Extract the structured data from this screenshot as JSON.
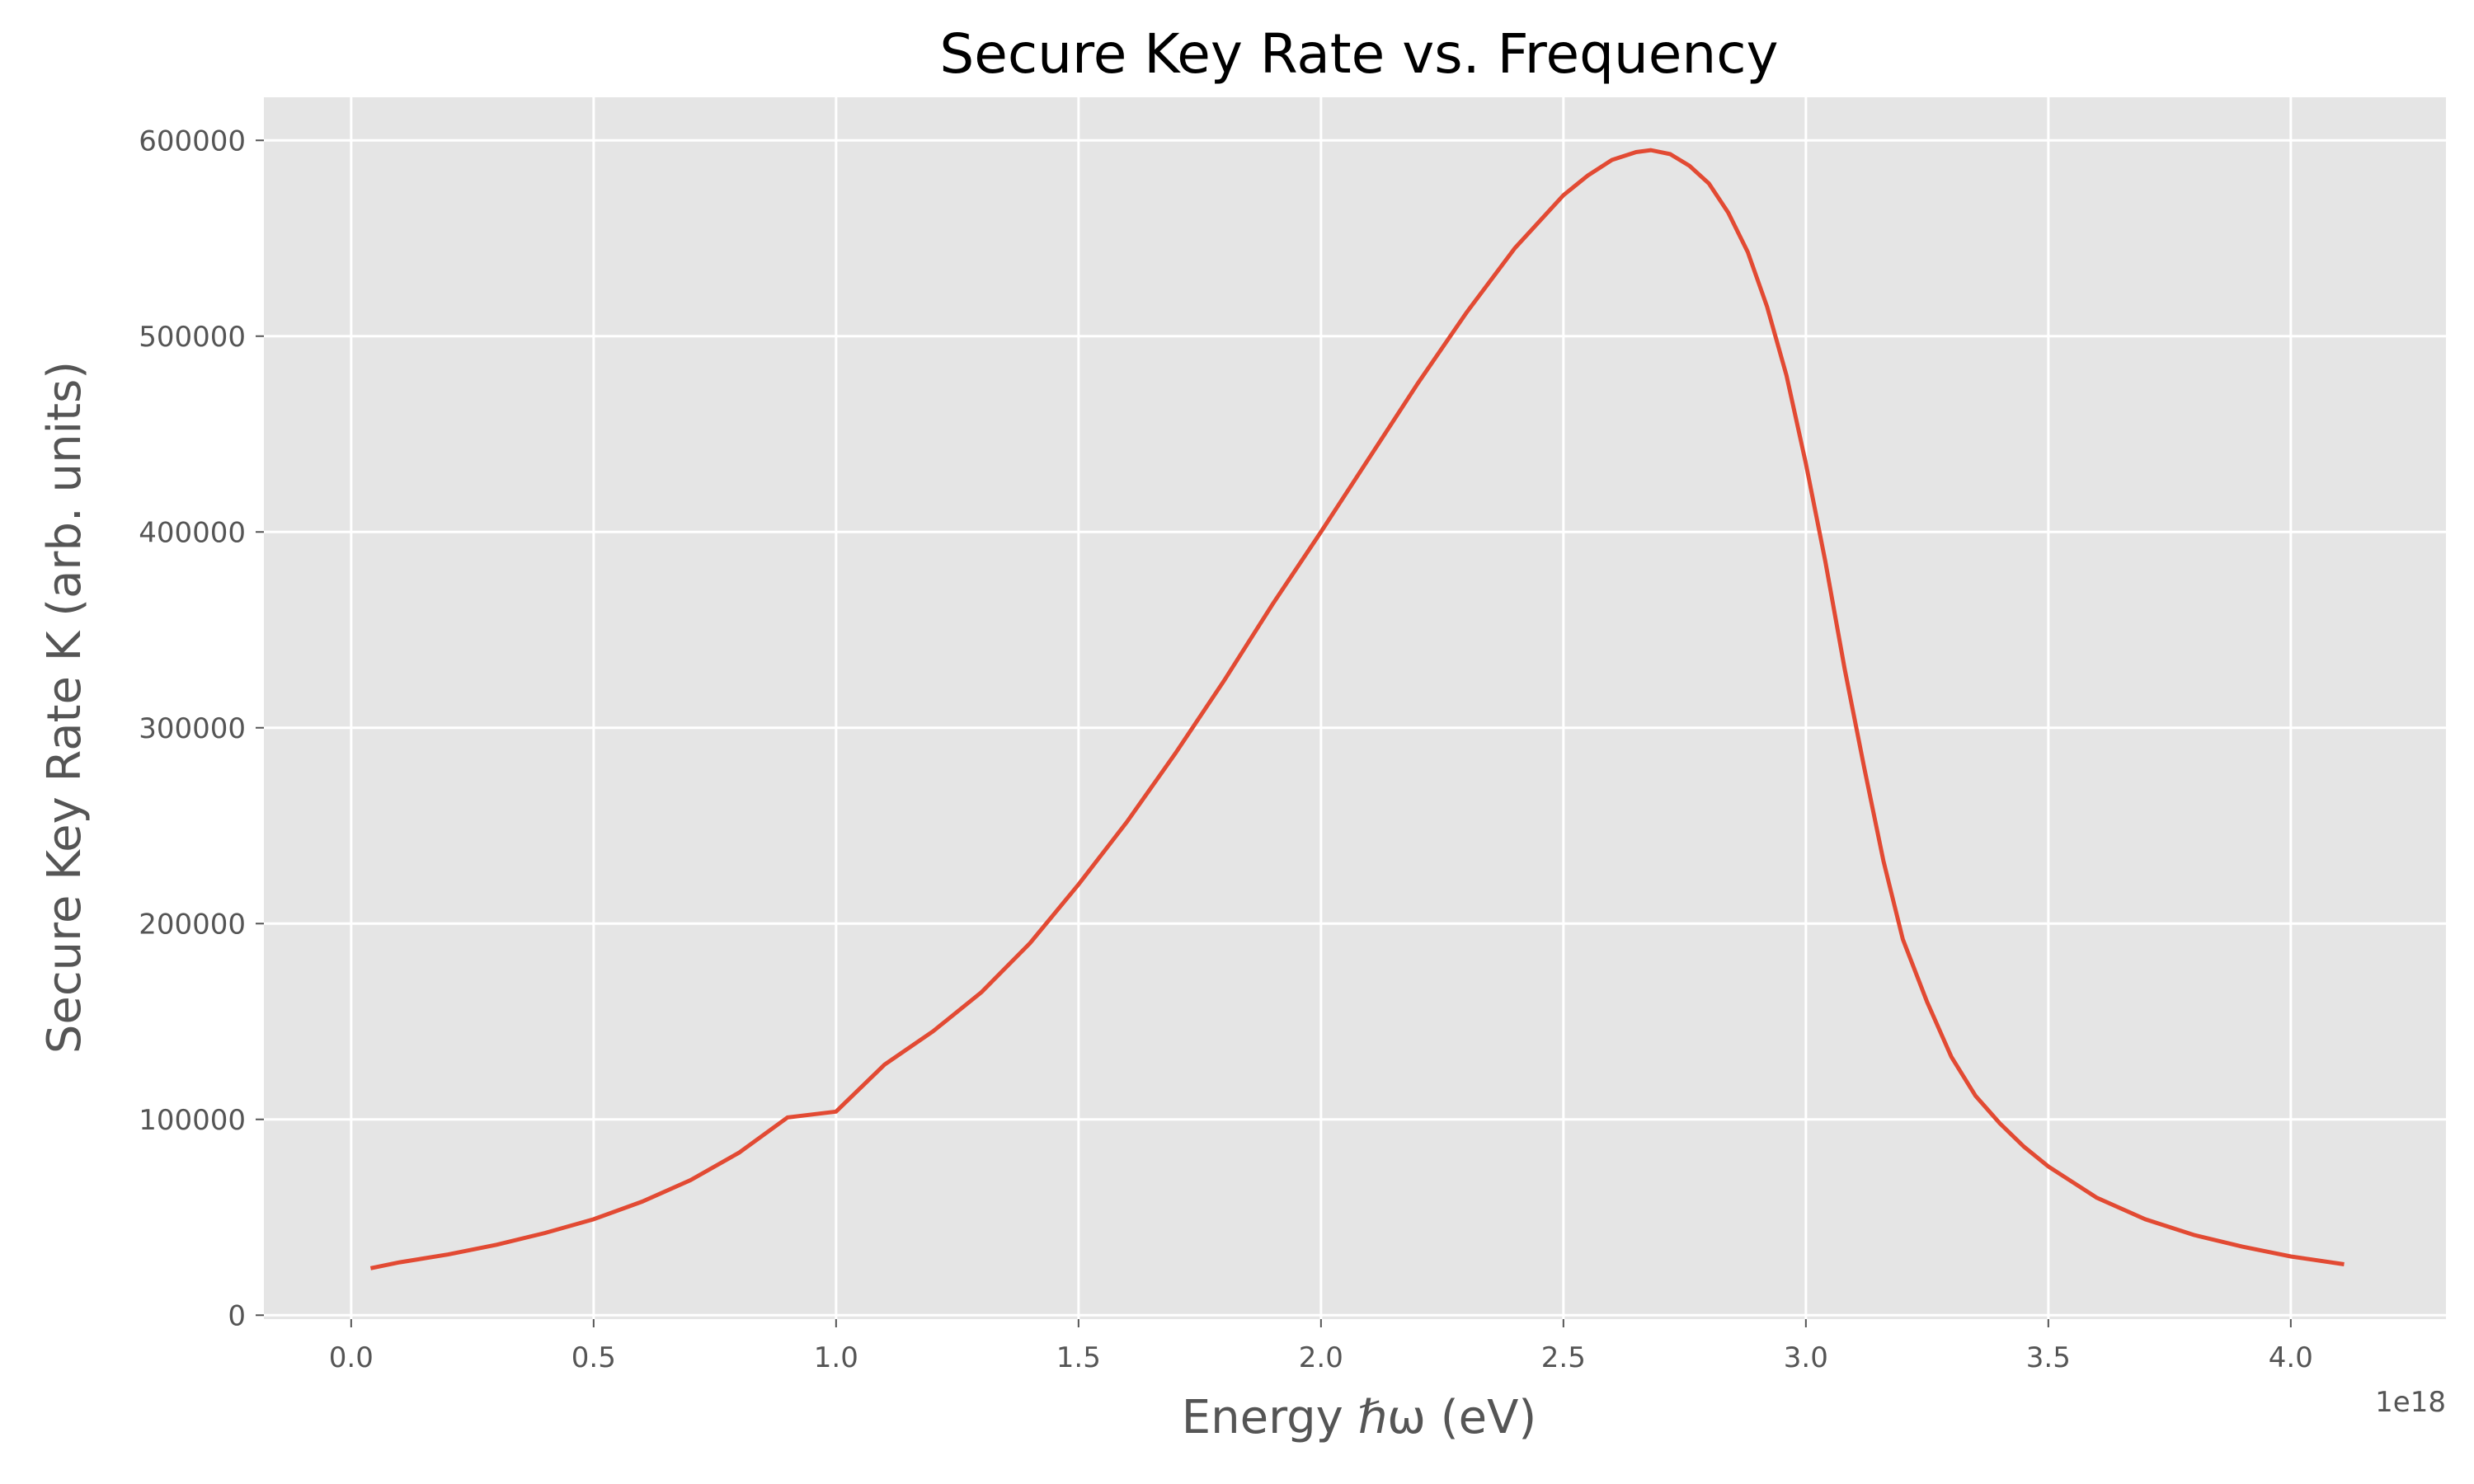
{
  "chart_data": {
    "type": "line",
    "title": "Secure Key Rate vs. Frequency",
    "xlabel": "Energy ℏω (eV)",
    "ylabel": "Secure Key Rate K (arb. units)",
    "x_offset_text": "1e18",
    "xlim": [
      -0.18,
      4.32
    ],
    "ylim": [
      -2000,
      622000
    ],
    "xticks": [
      0.0,
      0.5,
      1.0,
      1.5,
      2.0,
      2.5,
      3.0,
      3.5,
      4.0
    ],
    "xtick_labels": [
      "0.0",
      "0.5",
      "1.0",
      "1.5",
      "2.0",
      "2.5",
      "3.0",
      "3.5",
      "4.0"
    ],
    "yticks": [
      0,
      100000,
      200000,
      300000,
      400000,
      500000,
      600000
    ],
    "ytick_labels": [
      "0",
      "100000",
      "200000",
      "300000",
      "400000",
      "500000",
      "600000"
    ],
    "grid": true,
    "colors": {
      "background": "#e5e5e5",
      "grid": "#ffffff",
      "line": "#e24a33"
    },
    "series": [
      {
        "x": [
          0.04,
          0.1,
          0.2,
          0.3,
          0.4,
          0.5,
          0.6,
          0.7,
          0.8,
          0.9,
          1.0,
          1.1,
          1.2,
          1.3,
          1.4,
          1.5,
          1.6,
          1.7,
          1.8,
          1.9,
          2.0,
          2.1,
          2.2,
          2.3,
          2.4,
          2.5,
          2.55,
          2.6,
          2.65,
          2.68,
          2.72,
          2.76,
          2.8,
          2.84,
          2.88,
          2.92,
          2.96,
          3.0,
          3.04,
          3.08,
          3.12,
          3.16,
          3.2,
          3.25,
          3.3,
          3.35,
          3.4,
          3.45,
          3.5,
          3.55,
          3.6,
          3.7,
          3.8,
          3.9,
          4.0,
          4.11
        ],
        "y": [
          24000,
          27000,
          31000,
          36000,
          42000,
          49000,
          58000,
          69000,
          83000,
          101000,
          104000,
          128000,
          145000,
          165000,
          190000,
          220000,
          252000,
          287000,
          324000,
          363000,
          400000,
          438000,
          476000,
          512000,
          545000,
          572000,
          582000,
          590000,
          594000,
          595000,
          593000,
          587000,
          578000,
          563000,
          543000,
          515000,
          480000,
          435000,
          385000,
          330000,
          280000,
          232000,
          192000,
          160000,
          132000,
          112000,
          98000,
          86000,
          76000,
          68000,
          60000,
          49000,
          41000,
          35000,
          30000,
          26000
        ]
      }
    ]
  }
}
